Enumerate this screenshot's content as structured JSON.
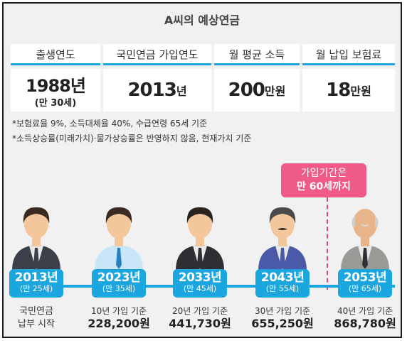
{
  "title": "A씨의 예상연금",
  "table": {
    "headers": [
      "출생연도",
      "국민연금 가입연도",
      "월 평균 소득",
      "월 납입 보험료"
    ],
    "birth": {
      "value": "1988년",
      "age": "(만 30세)"
    },
    "join": {
      "value": "2013",
      "unit": "년"
    },
    "income": {
      "value": "200",
      "unit": "만원"
    },
    "premium": {
      "value": "18",
      "unit": "만원"
    }
  },
  "notes": [
    "*보험료율 9%, 소득대체율 40%, 수급연령 65세 기준",
    "*소득상승률(미래가치)·물가상승률은 반영하지 않음, 현재가치 기준"
  ],
  "callout": {
    "line1": "가입기간은",
    "line2": "만 60세까지"
  },
  "timeline": [
    {
      "year": "2013년",
      "age": "(만 25세)",
      "line1": "국민연금",
      "line2": "납부 시작",
      "shirt": "#e9e9e9",
      "suit": "#3b3f49",
      "tie": "#3b3f49",
      "skin": "#f3c69b",
      "hair": "#3a2a22"
    },
    {
      "year": "2023년",
      "age": "(만 35세)",
      "line1": "10년 가입 기준",
      "line2": "228,200원",
      "shirt": "#c9e6f8",
      "suit": "#c9e6f8",
      "tie": "#2a7fbf",
      "skin": "#f3c69b",
      "hair": "#3a2a22"
    },
    {
      "year": "2033년",
      "age": "(만 45세)",
      "line1": "20년 가입 기준",
      "line2": "441,730원",
      "shirt": "#e9e9e9",
      "suit": "#2f2f33",
      "tie": "#2f2f33",
      "skin": "#f3c69b",
      "hair": "#2a2420"
    },
    {
      "year": "2043년",
      "age": "(만 55세)",
      "line1": "30년 가입 기준",
      "line2": "655,250원",
      "shirt": "#e9e9e9",
      "suit": "#4a5aa8",
      "tie": "#4a5aa8",
      "skin": "#f3c69b",
      "hair": "#4a4a4a"
    },
    {
      "year": "2053년",
      "age": "(만 65세)",
      "line1": "40년 가입 기준",
      "line2": "868,780원",
      "shirt": "#e9e9e9",
      "suit": "#9a9a96",
      "tie": "#2f2f33",
      "skin": "#e8b48a",
      "hair": "#cfcfcf"
    }
  ],
  "colors": {
    "accent": "#1ba6e0",
    "callout": "#ef5a86",
    "frame": "#1a1a1a"
  }
}
